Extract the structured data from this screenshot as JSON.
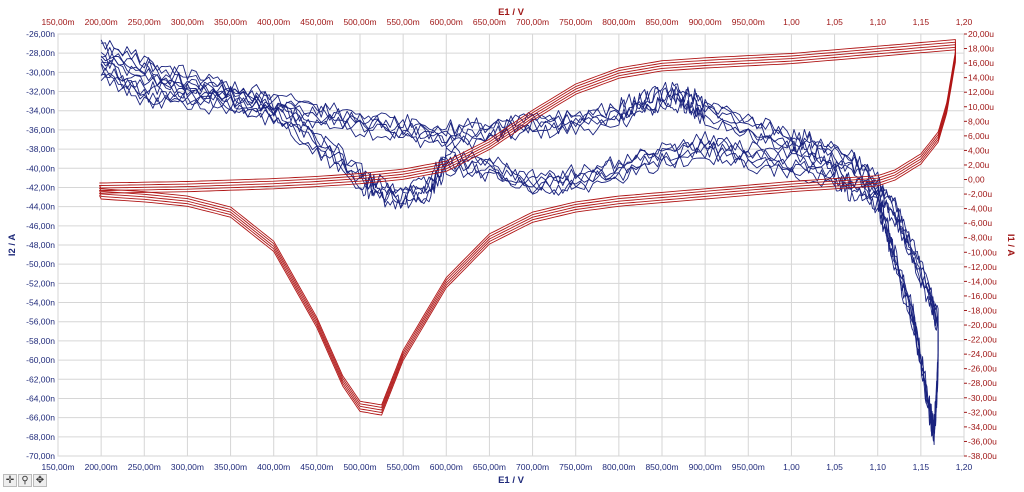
{
  "chart_data": {
    "type": "line",
    "xlabel": "E1 / V",
    "ylabel_left": "I2 / A",
    "ylabel_right": "I1 / A",
    "x_ticks": [
      "150,00m",
      "200,00m",
      "250,00m",
      "300,00m",
      "350,00m",
      "400,00m",
      "450,00m",
      "500,00m",
      "550,00m",
      "600,00m",
      "650,00m",
      "700,00m",
      "750,00m",
      "800,00m",
      "850,00m",
      "900,00m",
      "950,00m",
      "1,00",
      "1,05",
      "1,10",
      "1,15",
      "1,20"
    ],
    "x_tick_values": [
      0.15,
      0.2,
      0.25,
      0.3,
      0.35,
      0.4,
      0.45,
      0.5,
      0.55,
      0.6,
      0.65,
      0.7,
      0.75,
      0.8,
      0.85,
      0.9,
      0.95,
      1.0,
      1.05,
      1.1,
      1.15,
      1.2
    ],
    "left_ticks": [
      "-26,00n",
      "-28,00n",
      "-30,00n",
      "-32,00n",
      "-34,00n",
      "-36,00n",
      "-38,00n",
      "-40,00n",
      "-42,00n",
      "-44,00n",
      "-46,00n",
      "-48,00n",
      "-50,00n",
      "-52,00n",
      "-54,00n",
      "-56,00n",
      "-58,00n",
      "-60,00n",
      "-62,00n",
      "-64,00n",
      "-66,00n",
      "-68,00n",
      "-70,00n"
    ],
    "left_tick_values": [
      -26,
      -28,
      -30,
      -32,
      -34,
      -36,
      -38,
      -40,
      -42,
      -44,
      -46,
      -48,
      -50,
      -52,
      -54,
      -56,
      -58,
      -60,
      -62,
      -64,
      -66,
      -68,
      -70
    ],
    "right_ticks": [
      "20,00u",
      "18,00u",
      "16,00u",
      "14,00u",
      "12,00u",
      "10,00u",
      "8,00u",
      "6,00u",
      "4,00u",
      "2,00u",
      "0,00",
      "-2,00u",
      "-4,00u",
      "-6,00u",
      "-8,00u",
      "-10,00u",
      "-12,00u",
      "-14,00u",
      "-16,00u",
      "-18,00u",
      "-20,00u",
      "-22,00u",
      "-24,00u",
      "-26,00u",
      "-28,00u",
      "-30,00u",
      "-32,00u",
      "-34,00u",
      "-36,00u",
      "-38,00u"
    ],
    "right_tick_values": [
      20,
      18,
      16,
      14,
      12,
      10,
      8,
      6,
      4,
      2,
      0,
      -2,
      -4,
      -6,
      -8,
      -10,
      -12,
      -14,
      -16,
      -18,
      -20,
      -22,
      -24,
      -26,
      -28,
      -30,
      -32,
      -34,
      -36,
      -38
    ],
    "xlim": [
      0.15,
      1.2
    ],
    "ylim_left": [
      -70,
      -26
    ],
    "ylim_right": [
      -38,
      20
    ],
    "grid": true,
    "series": [
      {
        "axis": "left",
        "color": "#1a237e",
        "cycles": 6,
        "forward": [
          [
            0.2,
            -27.8
          ],
          [
            0.25,
            -29.4
          ],
          [
            0.3,
            -30.9
          ],
          [
            0.35,
            -32.0
          ],
          [
            0.4,
            -33.2
          ],
          [
            0.45,
            -34.2
          ],
          [
            0.5,
            -35.0
          ],
          [
            0.55,
            -35.8
          ],
          [
            0.6,
            -36.4
          ],
          [
            0.65,
            -36.0
          ],
          [
            0.7,
            -35.2
          ],
          [
            0.75,
            -35.0
          ],
          [
            0.8,
            -34.2
          ],
          [
            0.83,
            -33.0
          ],
          [
            0.86,
            -32.4
          ],
          [
            0.88,
            -32.8
          ],
          [
            0.9,
            -33.8
          ],
          [
            0.95,
            -35.5
          ],
          [
            1.0,
            -37.0
          ],
          [
            1.03,
            -37.8
          ],
          [
            1.07,
            -39.2
          ],
          [
            1.1,
            -41.8
          ],
          [
            1.12,
            -44.5
          ],
          [
            1.14,
            -48.5
          ],
          [
            1.16,
            -53.0
          ],
          [
            1.17,
            -56.0
          ]
        ],
        "reverse": [
          [
            1.17,
            -56.0
          ],
          [
            1.17,
            -60.0
          ],
          [
            1.168,
            -64.0
          ],
          [
            1.165,
            -67.5
          ],
          [
            1.16,
            -65.0
          ],
          [
            1.15,
            -60.0
          ],
          [
            1.14,
            -55.0
          ],
          [
            1.12,
            -49.5
          ],
          [
            1.11,
            -46.0
          ],
          [
            1.1,
            -43.0
          ],
          [
            1.07,
            -41.8
          ],
          [
            1.05,
            -40.5
          ],
          [
            1.0,
            -39.4
          ],
          [
            0.95,
            -38.6
          ],
          [
            0.9,
            -37.6
          ],
          [
            0.85,
            -38.5
          ],
          [
            0.8,
            -40.0
          ],
          [
            0.75,
            -41.0
          ],
          [
            0.7,
            -41.5
          ],
          [
            0.65,
            -39.8
          ],
          [
            0.6,
            -39.0
          ],
          [
            0.58,
            -42.0
          ],
          [
            0.55,
            -42.8
          ],
          [
            0.52,
            -42.0
          ],
          [
            0.5,
            -40.8
          ],
          [
            0.45,
            -37.0
          ],
          [
            0.4,
            -34.0
          ],
          [
            0.35,
            -32.8
          ],
          [
            0.3,
            -32.3
          ],
          [
            0.25,
            -32.0
          ],
          [
            0.2,
            -29.5
          ]
        ]
      },
      {
        "axis": "right",
        "color": "#b01515",
        "cycles": 5,
        "forward": [
          [
            0.198,
            -1.0
          ],
          [
            0.25,
            -0.9
          ],
          [
            0.3,
            -0.8
          ],
          [
            0.35,
            -0.6
          ],
          [
            0.4,
            -0.4
          ],
          [
            0.45,
            -0.1
          ],
          [
            0.5,
            0.3
          ],
          [
            0.55,
            0.9
          ],
          [
            0.6,
            2.0
          ],
          [
            0.65,
            5.0
          ],
          [
            0.7,
            9.0
          ],
          [
            0.75,
            12.6
          ],
          [
            0.8,
            14.8
          ],
          [
            0.85,
            15.8
          ],
          [
            0.9,
            16.2
          ],
          [
            0.95,
            16.5
          ],
          [
            1.0,
            16.8
          ],
          [
            1.05,
            17.3
          ],
          [
            1.1,
            17.8
          ],
          [
            1.15,
            18.3
          ],
          [
            1.19,
            18.7
          ]
        ],
        "reverse": [
          [
            1.19,
            18.7
          ],
          [
            1.19,
            17.0
          ],
          [
            1.18,
            10.0
          ],
          [
            1.17,
            6.0
          ],
          [
            1.15,
            3.0
          ],
          [
            1.12,
            0.8
          ],
          [
            1.1,
            0.0
          ],
          [
            1.05,
            -0.4
          ],
          [
            1.0,
            -0.8
          ],
          [
            0.95,
            -1.3
          ],
          [
            0.9,
            -1.8
          ],
          [
            0.85,
            -2.3
          ],
          [
            0.8,
            -2.8
          ],
          [
            0.75,
            -3.6
          ],
          [
            0.7,
            -5.0
          ],
          [
            0.65,
            -8.0
          ],
          [
            0.6,
            -14.0
          ],
          [
            0.55,
            -24.0
          ],
          [
            0.525,
            -31.5
          ],
          [
            0.5,
            -31.0
          ],
          [
            0.48,
            -27.5
          ],
          [
            0.45,
            -19.5
          ],
          [
            0.4,
            -9.0
          ],
          [
            0.35,
            -4.3
          ],
          [
            0.3,
            -2.8
          ],
          [
            0.25,
            -2.2
          ],
          [
            0.2,
            -1.8
          ],
          [
            0.198,
            -1.3
          ]
        ]
      }
    ]
  },
  "toolbar": {
    "icons": [
      "crosshair-icon",
      "zoom-icon",
      "pan-icon"
    ],
    "glyphs": [
      "✛",
      "⚲",
      "✥"
    ]
  }
}
